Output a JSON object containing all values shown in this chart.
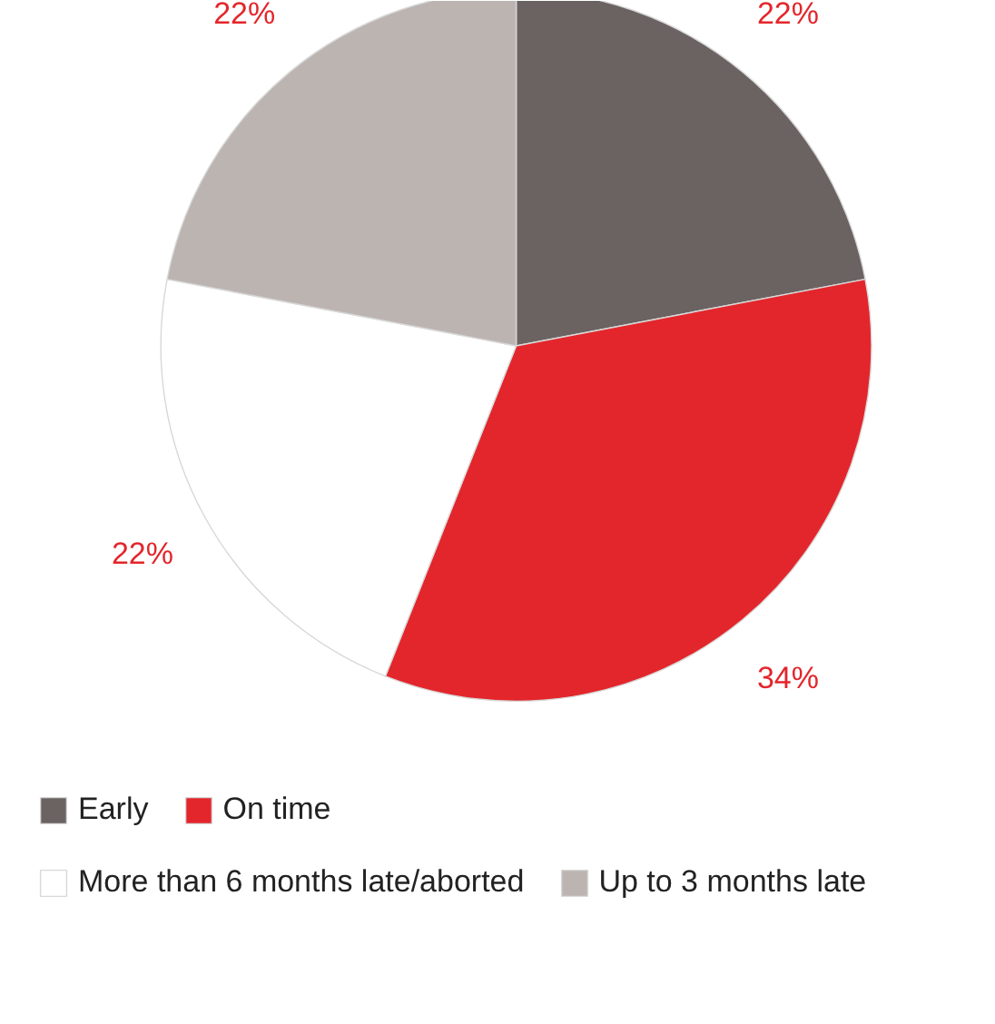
{
  "chart_data": {
    "type": "pie",
    "categories": [
      "Early",
      "On time",
      "More than 6 months late/aborted",
      "Up to 3 months late"
    ],
    "values": [
      22,
      34,
      22,
      22
    ],
    "colors": [
      "#6b6362",
      "#e3262b",
      "#ffffff",
      "#bcb4b1"
    ],
    "value_labels": [
      "22%",
      "34%",
      "22%",
      "22%"
    ],
    "legend": "bottom"
  }
}
